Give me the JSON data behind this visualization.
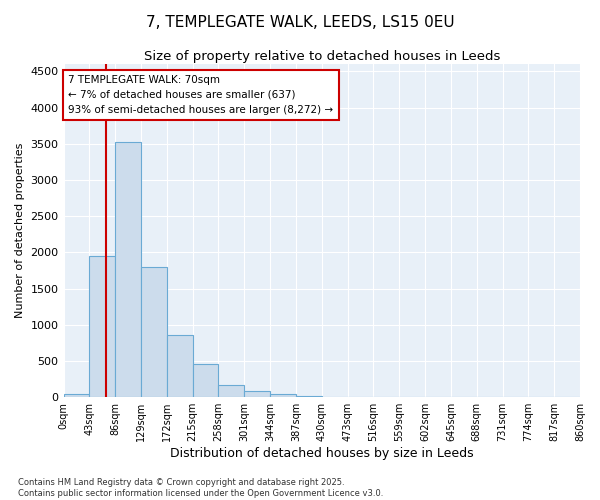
{
  "title": "7, TEMPLEGATE WALK, LEEDS, LS15 0EU",
  "subtitle": "Size of property relative to detached houses in Leeds",
  "xlabel": "Distribution of detached houses by size in Leeds",
  "ylabel": "Number of detached properties",
  "bar_values": [
    50,
    1950,
    3520,
    1800,
    860,
    460,
    170,
    80,
    50,
    20,
    0,
    0,
    0,
    0,
    0,
    0,
    0,
    0,
    0,
    0
  ],
  "bin_edges": [
    0,
    43,
    86,
    129,
    172,
    215,
    258,
    301,
    344,
    387,
    430,
    473,
    516,
    559,
    602,
    645,
    688,
    731,
    774,
    817,
    860
  ],
  "tick_labels": [
    "0sqm",
    "43sqm",
    "86sqm",
    "129sqm",
    "172sqm",
    "215sqm",
    "258sqm",
    "301sqm",
    "344sqm",
    "387sqm",
    "430sqm",
    "473sqm",
    "516sqm",
    "559sqm",
    "602sqm",
    "645sqm",
    "688sqm",
    "731sqm",
    "774sqm",
    "817sqm",
    "860sqm"
  ],
  "bar_color": "#ccdcec",
  "bar_edge_color": "#6aaad4",
  "vline_x": 70,
  "vline_color": "#cc0000",
  "annotation_text": "7 TEMPLEGATE WALK: 70sqm\n← 7% of detached houses are smaller (637)\n93% of semi-detached houses are larger (8,272) →",
  "annotation_box_edge": "#cc0000",
  "annotation_box_face": "white",
  "ylim": [
    0,
    4600
  ],
  "yticks": [
    0,
    500,
    1000,
    1500,
    2000,
    2500,
    3000,
    3500,
    4000,
    4500
  ],
  "background_color": "#e8f0f8",
  "grid_color": "#ffffff",
  "footer_line1": "Contains HM Land Registry data © Crown copyright and database right 2025.",
  "footer_line2": "Contains public sector information licensed under the Open Government Licence v3.0.",
  "title_fontsize": 11,
  "subtitle_fontsize": 9.5,
  "xlabel_fontsize": 9,
  "ylabel_fontsize": 8,
  "tick_fontsize": 7,
  "annotation_fontsize": 7.5,
  "footer_fontsize": 6
}
